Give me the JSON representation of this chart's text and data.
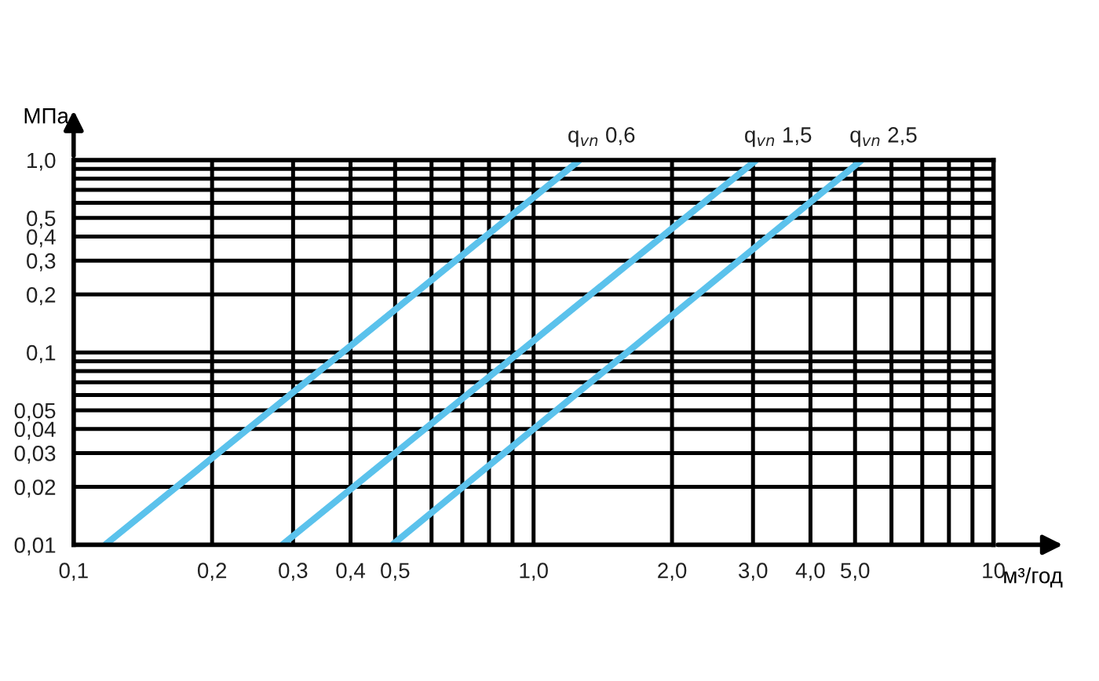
{
  "chart_data": {
    "type": "line",
    "xlabel": "м³/год",
    "ylabel": "МПа",
    "log": "xy",
    "grid": true,
    "legend": false,
    "marker": "none",
    "line_style": "solid",
    "xlim": [
      0.1,
      10
    ],
    "ylim": [
      0.01,
      1.0
    ],
    "xticks": [
      {
        "value": 0.1,
        "label": "0,1"
      },
      {
        "value": 0.2,
        "label": "0,2"
      },
      {
        "value": 0.3,
        "label": "0,3"
      },
      {
        "value": 0.4,
        "label": "0,4"
      },
      {
        "value": 0.5,
        "label": "0,5"
      },
      {
        "value": 0.6,
        "label": null
      },
      {
        "value": 0.7,
        "label": null
      },
      {
        "value": 0.8,
        "label": null
      },
      {
        "value": 0.9,
        "label": null
      },
      {
        "value": 1.0,
        "label": "1,0"
      },
      {
        "value": 2.0,
        "label": "2,0"
      },
      {
        "value": 3.0,
        "label": "3,0"
      },
      {
        "value": 4.0,
        "label": "4,0"
      },
      {
        "value": 5.0,
        "label": "5,0"
      },
      {
        "value": 6.0,
        "label": null
      },
      {
        "value": 7.0,
        "label": null
      },
      {
        "value": 8.0,
        "label": null
      },
      {
        "value": 9.0,
        "label": null
      },
      10
    ],
    "yticks": [
      {
        "value": 0.01,
        "label": "0,01"
      },
      {
        "value": 0.02,
        "label": "0,02"
      },
      {
        "value": 0.03,
        "label": "0,03"
      },
      {
        "value": 0.04,
        "label": "0,04"
      },
      {
        "value": 0.05,
        "label": "0,05"
      },
      {
        "value": 0.06,
        "label": null
      },
      {
        "value": 0.07,
        "label": null
      },
      {
        "value": 0.08,
        "label": null
      },
      {
        "value": 0.09,
        "label": null
      },
      {
        "value": 0.1,
        "label": "0,1"
      },
      {
        "value": 0.2,
        "label": "0,2"
      },
      {
        "value": 0.3,
        "label": "0,3"
      },
      {
        "value": 0.4,
        "label": "0,4"
      },
      {
        "value": 0.5,
        "label": "0,5"
      },
      {
        "value": 0.6,
        "label": null
      },
      {
        "value": 0.7,
        "label": null
      },
      {
        "value": 0.8,
        "label": null
      },
      {
        "value": 0.9,
        "label": null
      },
      {
        "value": 1.0,
        "label": "1,0"
      }
    ],
    "series": [
      {
        "name": "q$_{vn}$ 0,6",
        "color": "#5bc2ec",
        "x": [
          0.117,
          0.384,
          1.26
        ],
        "values": [
          0.01,
          0.1,
          1.0
        ]
      },
      {
        "name": "q$_{vn}$ 1,5",
        "color": "#5bc2ec",
        "x": [
          0.284,
          3.05
        ],
        "values": [
          0.01,
          1.0
        ]
      },
      {
        "name": "q$_{vn}$ 2,5",
        "color": "#5bc2ec",
        "x": [
          0.493,
          5.17
        ],
        "values": [
          0.01,
          1.0
        ]
      }
    ]
  }
}
